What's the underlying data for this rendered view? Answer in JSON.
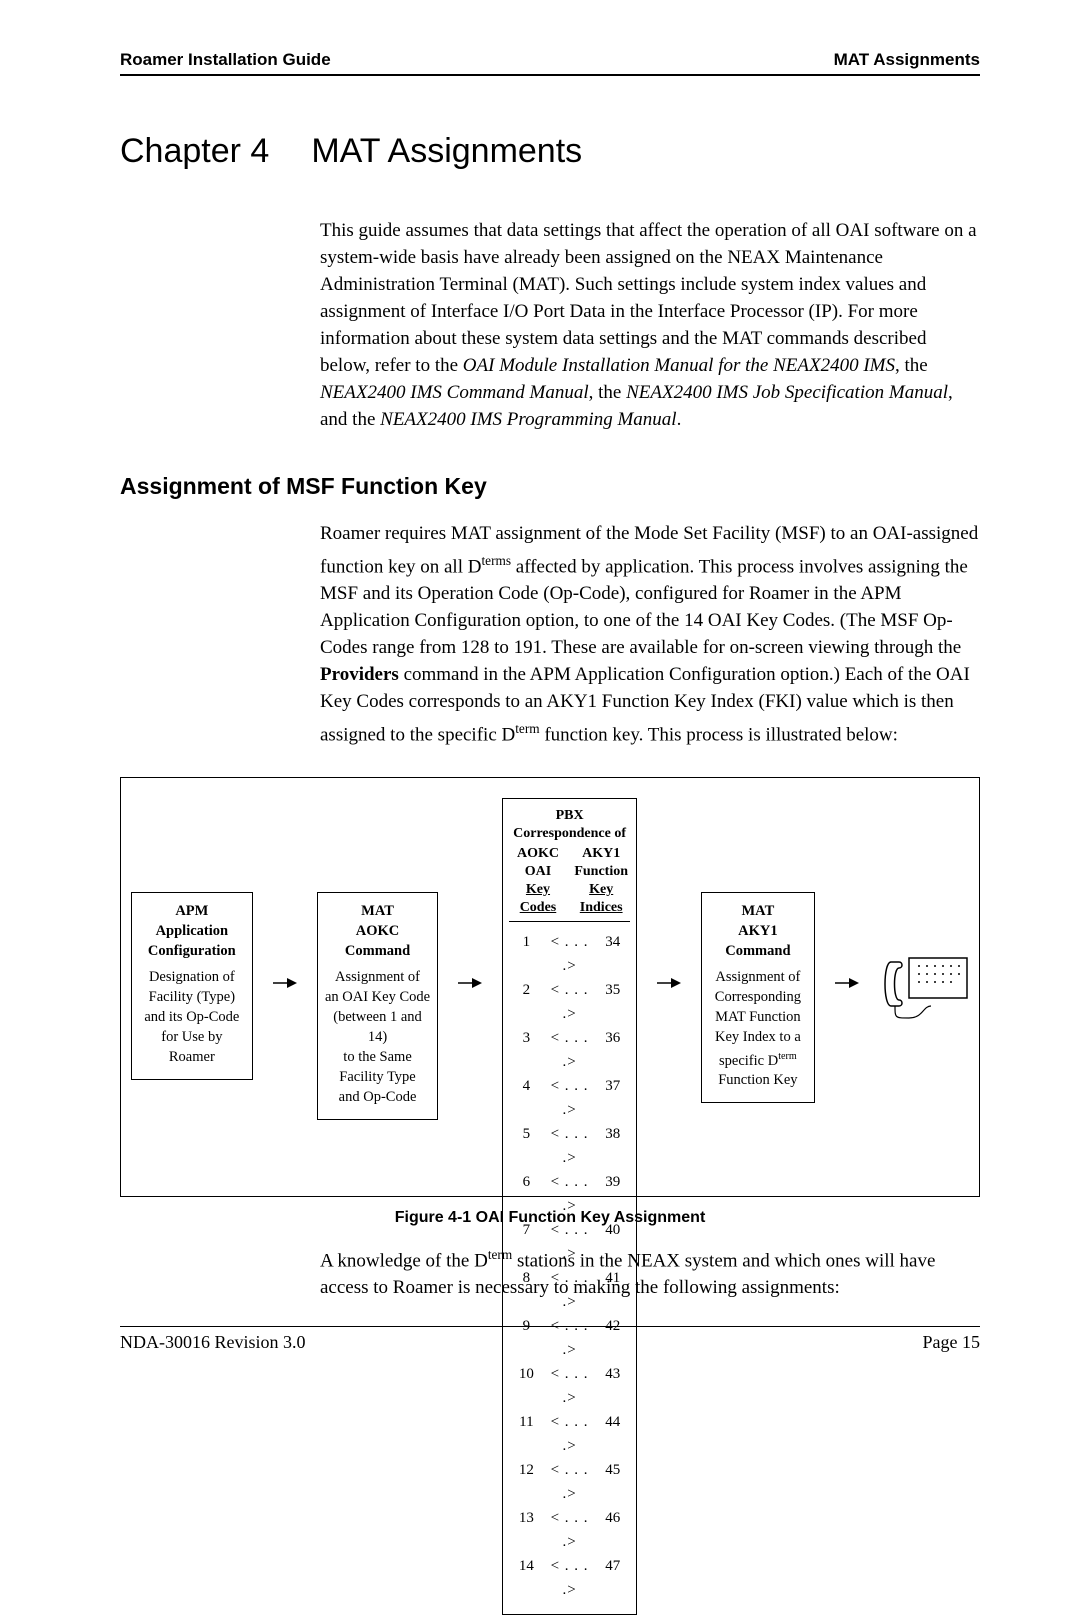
{
  "header": {
    "left": "Roamer Installation Guide",
    "right": "MAT Assignments"
  },
  "chapter": {
    "label": "Chapter 4",
    "title": "MAT Assignments"
  },
  "intro": {
    "pre": "This guide assumes that data settings that affect the operation of all OAI software on a system-wide basis have already been assigned on the NEAX Maintenance Administration Terminal (MAT). Such settings include system index values and assignment of Interface I/O Port Data in the Interface Processor (IP). For more information about these system data settings and the MAT commands described below, refer to the ",
    "ref1": "OAI Module Installation Manual for the NEAX2400 IMS",
    "mid1": ", the ",
    "ref2": "NEAX2400 IMS Command Manual",
    "mid2": ", the ",
    "ref3": "NEAX2400 IMS Job Specification Manual",
    "mid3": ", and the ",
    "ref4": "NEAX2400 IMS Programming Manual",
    "end": "."
  },
  "section": {
    "heading": "Assignment of MSF Function Key",
    "para_pre": "Roamer requires MAT assignment of the Mode Set Facility (MSF) to an OAI-assigned function key on all D",
    "sup1": "terms",
    "para_mid1": " affected by application. This process involves assigning the MSF and its Operation Code (Op-Code), configured for Roamer in the APM Application Configuration option, to one of the 14 OAI Key Codes. (The MSF Op-Codes range from 128 to 191. These are available for on-screen viewing through the ",
    "bold1": "Providers",
    "para_mid2": " command in the APM Application Configuration option.) Each of the OAI Key Codes corresponds to an AKY1 Function Key Index (FKI) value which is then assigned to the specific D",
    "sup2": "term",
    "para_end": " function key. This process is illustrated below:"
  },
  "figure": {
    "box1": {
      "h1": "APM",
      "h2": "Application",
      "h3": "Configuration",
      "l1": "Designation of",
      "l2": "Facility (Type)",
      "l3": "and its Op-Code",
      "l4": "for Use by",
      "l5": "Roamer"
    },
    "box2": {
      "h1": "MAT",
      "h2": "AOKC",
      "h3": "Command",
      "l1": "Assignment of",
      "l2": "an OAI Key Code",
      "l3": "(between 1 and 14)",
      "l4": "to the Same",
      "l5": "Facility Type",
      "l6": "and Op-Code"
    },
    "box3": {
      "pbx": "PBX Correspondence of",
      "col1a": "AOKC",
      "col1b": "OAI",
      "col1c": "Key Codes",
      "col2a": "AKY1",
      "col2b": "Function",
      "col2c": "Key Indices",
      "rows": [
        {
          "a": "1",
          "b": "34"
        },
        {
          "a": "2",
          "b": "35"
        },
        {
          "a": "3",
          "b": "36"
        },
        {
          "a": "4",
          "b": "37"
        },
        {
          "a": "5",
          "b": "38"
        },
        {
          "a": "6",
          "b": "39"
        },
        {
          "a": "7",
          "b": "40"
        },
        {
          "a": "8",
          "b": "41"
        },
        {
          "a": "9",
          "b": "42"
        },
        {
          "a": "10",
          "b": "43"
        },
        {
          "a": "11",
          "b": "44"
        },
        {
          "a": "12",
          "b": "45"
        },
        {
          "a": "13",
          "b": "46"
        },
        {
          "a": "14",
          "b": "47"
        }
      ],
      "arrow_mid": "< . . . .>"
    },
    "box4": {
      "h1": "MAT",
      "h2": "AKY1",
      "h3": "Command",
      "l1": "Assignment of",
      "l2": "Corresponding",
      "l3": "MAT Function",
      "l4": "Key Index to a",
      "l5a": "specific D",
      "l5sup": "term",
      "l6": "Function Key"
    },
    "caption": "Figure 4-1   OAI Function Key Assignment"
  },
  "post_para": {
    "pre": "A knowledge of the D",
    "sup": "term",
    "rest": " stations in the NEAX system and which ones will have access to Roamer is necessary to making the following assignments:"
  },
  "footer": {
    "left": "NDA-30016   Revision 3.0",
    "right": "Page 15"
  },
  "colors": {
    "text": "#000000",
    "rule": "#000000",
    "background": "#ffffff"
  },
  "typography": {
    "body_font": "Times New Roman",
    "heading_font": "Arial",
    "body_size_pt": 14,
    "chapter_size_pt": 26,
    "section_size_pt": 17,
    "caption_size_pt": 12
  }
}
